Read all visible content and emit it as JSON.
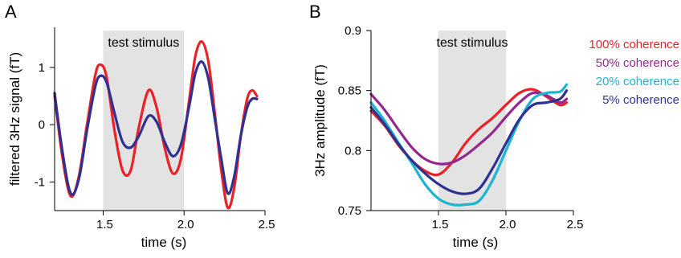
{
  "figure": {
    "panel_a_letter": "A",
    "panel_b_letter": "B"
  },
  "chart_data": [
    {
      "type": "line",
      "panel": "A",
      "xlabel": "time (s)",
      "ylabel": "filtered 3Hz signal (fT)",
      "xlim": [
        1.2,
        2.5
      ],
      "ylim": [
        -1.5,
        1.7
      ],
      "xticks": [
        "1.5",
        "2.0",
        "2.5"
      ],
      "xtick_values": [
        1.5,
        2.0,
        2.5
      ],
      "yticks": [
        "-1",
        "0",
        "1"
      ],
      "ytick_values": [
        -1,
        0,
        1
      ],
      "grid": false,
      "shaded_region": {
        "x": [
          1.5,
          2.0
        ],
        "label": "test stimulus",
        "color": "#e3e3e3"
      },
      "series": [
        {
          "color": "#ea2127",
          "x": [
            1.2,
            1.25,
            1.3,
            1.35,
            1.4,
            1.45,
            1.48,
            1.52,
            1.57,
            1.62,
            1.67,
            1.72,
            1.78,
            1.83,
            1.88,
            1.93,
            1.98,
            2.03,
            2.07,
            2.11,
            2.15,
            2.19,
            2.23,
            2.27,
            2.31,
            2.35,
            2.39,
            2.42,
            2.45
          ],
          "y": [
            0.5,
            -0.6,
            -1.25,
            -0.9,
            0.0,
            0.85,
            1.05,
            0.85,
            -0.1,
            -0.8,
            -0.8,
            -0.05,
            0.6,
            0.3,
            -0.4,
            -0.85,
            -0.6,
            0.4,
            1.2,
            1.45,
            1.1,
            0.2,
            -0.8,
            -1.45,
            -1.1,
            -0.2,
            0.45,
            0.6,
            0.5
          ]
        },
        {
          "color": "#2e3192",
          "x": [
            1.2,
            1.25,
            1.3,
            1.35,
            1.4,
            1.45,
            1.48,
            1.52,
            1.57,
            1.62,
            1.67,
            1.72,
            1.78,
            1.83,
            1.88,
            1.93,
            1.98,
            2.03,
            2.07,
            2.11,
            2.15,
            2.19,
            2.23,
            2.27,
            2.31,
            2.35,
            2.39,
            2.42,
            2.45
          ],
          "y": [
            0.55,
            -0.5,
            -1.2,
            -0.95,
            -0.1,
            0.65,
            0.85,
            0.75,
            0.2,
            -0.3,
            -0.4,
            -0.2,
            0.15,
            0.05,
            -0.3,
            -0.55,
            -0.35,
            0.3,
            0.9,
            1.1,
            0.8,
            0.1,
            -0.6,
            -1.2,
            -0.9,
            -0.2,
            0.3,
            0.45,
            0.45
          ]
        }
      ]
    },
    {
      "type": "line",
      "panel": "B",
      "xlabel": "time (s)",
      "ylabel": "3Hz amplitude (fT)",
      "xlim": [
        1.0,
        2.5
      ],
      "ylim": [
        0.75,
        0.9
      ],
      "xticks": [
        "1.5",
        "2.0",
        "2.5"
      ],
      "xtick_values": [
        1.5,
        2.0,
        2.5
      ],
      "yticks": [
        "0.75",
        "0.8",
        "0.85",
        "0.9"
      ],
      "ytick_values": [
        0.75,
        0.8,
        0.85,
        0.9
      ],
      "grid": false,
      "shaded_region": {
        "x": [
          1.5,
          2.0
        ],
        "label": "test stimulus",
        "color": "#e3e3e3"
      },
      "legend_position": "top-right",
      "series": [
        {
          "name": "100% coherence",
          "color": "#ea2127",
          "x": [
            1.0,
            1.1,
            1.2,
            1.3,
            1.4,
            1.5,
            1.6,
            1.7,
            1.8,
            1.9,
            2.0,
            2.1,
            2.2,
            2.3,
            2.4,
            2.45
          ],
          "y": [
            0.833,
            0.821,
            0.805,
            0.792,
            0.783,
            0.78,
            0.79,
            0.806,
            0.818,
            0.827,
            0.838,
            0.848,
            0.851,
            0.845,
            0.838,
            0.84
          ]
        },
        {
          "name": "50% coherence",
          "color": "#92278f",
          "x": [
            1.0,
            1.1,
            1.2,
            1.3,
            1.4,
            1.5,
            1.6,
            1.7,
            1.8,
            1.9,
            2.0,
            2.1,
            2.2,
            2.3,
            2.4,
            2.45
          ],
          "y": [
            0.847,
            0.834,
            0.818,
            0.803,
            0.793,
            0.789,
            0.79,
            0.796,
            0.805,
            0.815,
            0.828,
            0.84,
            0.848,
            0.846,
            0.84,
            0.843
          ]
        },
        {
          "name": "20% coherence",
          "color": "#1bb5d3",
          "x": [
            1.0,
            1.1,
            1.2,
            1.3,
            1.4,
            1.5,
            1.6,
            1.7,
            1.8,
            1.9,
            2.0,
            2.1,
            2.2,
            2.3,
            2.4,
            2.45
          ],
          "y": [
            0.84,
            0.825,
            0.807,
            0.79,
            0.772,
            0.76,
            0.755,
            0.755,
            0.758,
            0.775,
            0.8,
            0.825,
            0.843,
            0.848,
            0.849,
            0.855
          ]
        },
        {
          "name": "5% coherence",
          "color": "#2e3192",
          "x": [
            1.0,
            1.1,
            1.2,
            1.3,
            1.4,
            1.5,
            1.6,
            1.7,
            1.8,
            1.9,
            2.0,
            2.1,
            2.2,
            2.3,
            2.4,
            2.45
          ],
          "y": [
            0.836,
            0.822,
            0.806,
            0.792,
            0.781,
            0.772,
            0.766,
            0.764,
            0.768,
            0.785,
            0.806,
            0.826,
            0.838,
            0.84,
            0.843,
            0.85
          ]
        }
      ]
    }
  ]
}
